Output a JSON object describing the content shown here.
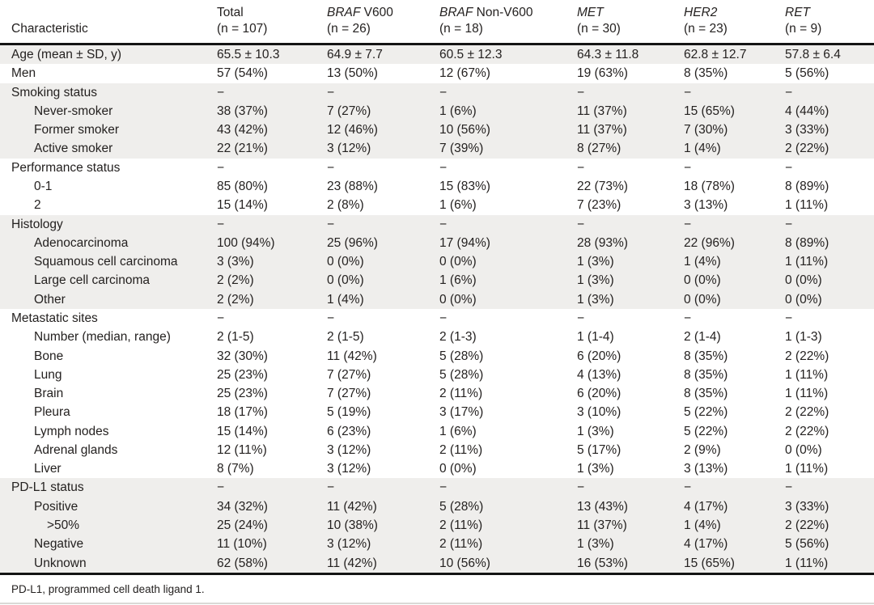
{
  "table": {
    "header_label": "Characteristic",
    "columns": [
      {
        "gene": "",
        "rest": "Total",
        "n": "(n = 107)"
      },
      {
        "gene": "BRAF",
        "rest": " V600",
        "n": "(n = 26)"
      },
      {
        "gene": "BRAF",
        "rest": " Non-V600",
        "n": "(n = 18)"
      },
      {
        "gene": "MET",
        "rest": "",
        "n": "(n = 30)"
      },
      {
        "gene": "HER2",
        "rest": "",
        "n": "(n = 23)"
      },
      {
        "gene": "RET",
        "rest": "",
        "n": "(n = 9)"
      }
    ],
    "rows": [
      {
        "label": "Age (mean ± SD, y)",
        "indent": 0,
        "shade": true,
        "values": [
          "65.5 ± 10.3",
          "64.9 ± 7.7",
          "60.5 ± 12.3",
          "64.3 ± 11.8",
          "62.8 ± 12.7",
          "57.8 ± 6.4"
        ]
      },
      {
        "label": "Men",
        "indent": 0,
        "shade": false,
        "values": [
          "57 (54%)",
          "13 (50%)",
          "12 (67%)",
          "19 (63%)",
          "8 (35%)",
          "5 (56%)"
        ]
      },
      {
        "label": "Smoking status",
        "indent": 0,
        "shade": true,
        "values": [
          "−",
          "−",
          "−",
          "−",
          "−",
          "−"
        ]
      },
      {
        "label": "Never-smoker",
        "indent": 1,
        "shade": true,
        "values": [
          "38 (37%)",
          "7 (27%)",
          "1 (6%)",
          "11 (37%)",
          "15 (65%)",
          "4 (44%)"
        ]
      },
      {
        "label": "Former smoker",
        "indent": 1,
        "shade": true,
        "values": [
          "43 (42%)",
          "12 (46%)",
          "10 (56%)",
          "11 (37%)",
          "7 (30%)",
          "3 (33%)"
        ]
      },
      {
        "label": "Active smoker",
        "indent": 1,
        "shade": true,
        "values": [
          "22 (21%)",
          "3 (12%)",
          "7 (39%)",
          "8 (27%)",
          "1 (4%)",
          "2 (22%)"
        ]
      },
      {
        "label": "Performance status",
        "indent": 0,
        "shade": false,
        "values": [
          "−",
          "−",
          "−",
          "−",
          "−",
          "−"
        ]
      },
      {
        "label": "0-1",
        "indent": 1,
        "shade": false,
        "values": [
          "85 (80%)",
          "23 (88%)",
          "15 (83%)",
          "22 (73%)",
          "18 (78%)",
          "8 (89%)"
        ]
      },
      {
        "label": "2",
        "indent": 1,
        "shade": false,
        "values": [
          "15 (14%)",
          "2 (8%)",
          "1 (6%)",
          "7 (23%)",
          "3 (13%)",
          "1 (11%)"
        ]
      },
      {
        "label": "Histology",
        "indent": 0,
        "shade": true,
        "values": [
          "−",
          "−",
          "−",
          "−",
          "−",
          "−"
        ]
      },
      {
        "label": "Adenocarcinoma",
        "indent": 1,
        "shade": true,
        "values": [
          "100 (94%)",
          "25 (96%)",
          "17 (94%)",
          "28 (93%)",
          "22 (96%)",
          "8 (89%)"
        ]
      },
      {
        "label": "Squamous cell carcinoma",
        "indent": 1,
        "shade": true,
        "values": [
          "3 (3%)",
          "0 (0%)",
          "0 (0%)",
          "1 (3%)",
          "1 (4%)",
          "1 (11%)"
        ]
      },
      {
        "label": "Large cell carcinoma",
        "indent": 1,
        "shade": true,
        "values": [
          "2 (2%)",
          "0 (0%)",
          "1 (6%)",
          "1 (3%)",
          "0 (0%)",
          "0 (0%)"
        ]
      },
      {
        "label": "Other",
        "indent": 1,
        "shade": true,
        "values": [
          "2 (2%)",
          "1 (4%)",
          "0 (0%)",
          "1 (3%)",
          "0 (0%)",
          "0 (0%)"
        ]
      },
      {
        "label": "Metastatic sites",
        "indent": 0,
        "shade": false,
        "values": [
          "−",
          "−",
          "−",
          "−",
          "−",
          "−"
        ]
      },
      {
        "label": "Number (median, range)",
        "indent": 1,
        "shade": false,
        "values": [
          "2 (1-5)",
          "2 (1-5)",
          "2 (1-3)",
          "1 (1-4)",
          "2 (1-4)",
          "1 (1-3)"
        ]
      },
      {
        "label": "Bone",
        "indent": 1,
        "shade": false,
        "values": [
          "32 (30%)",
          "11 (42%)",
          "5 (28%)",
          "6 (20%)",
          "8 (35%)",
          "2 (22%)"
        ]
      },
      {
        "label": "Lung",
        "indent": 1,
        "shade": false,
        "values": [
          "25 (23%)",
          "7 (27%)",
          "5 (28%)",
          "4 (13%)",
          "8 (35%)",
          "1 (11%)"
        ]
      },
      {
        "label": "Brain",
        "indent": 1,
        "shade": false,
        "values": [
          "25 (23%)",
          "7 (27%)",
          "2 (11%)",
          "6 (20%)",
          "8 (35%)",
          "1 (11%)"
        ]
      },
      {
        "label": "Pleura",
        "indent": 1,
        "shade": false,
        "values": [
          "18 (17%)",
          "5 (19%)",
          "3 (17%)",
          "3 (10%)",
          "5 (22%)",
          "2 (22%)"
        ]
      },
      {
        "label": "Lymph nodes",
        "indent": 1,
        "shade": false,
        "values": [
          "15 (14%)",
          "6 (23%)",
          "1 (6%)",
          "1 (3%)",
          "5 (22%)",
          "2 (22%)"
        ]
      },
      {
        "label": "Adrenal glands",
        "indent": 1,
        "shade": false,
        "values": [
          "12 (11%)",
          "3 (12%)",
          "2 (11%)",
          "5 (17%)",
          "2 (9%)",
          "0 (0%)"
        ]
      },
      {
        "label": "Liver",
        "indent": 1,
        "shade": false,
        "values": [
          "8 (7%)",
          "3 (12%)",
          "0 (0%)",
          "1 (3%)",
          "3 (13%)",
          "1 (11%)"
        ]
      },
      {
        "label": "PD-L1 status",
        "indent": 0,
        "shade": true,
        "values": [
          "−",
          "−",
          "−",
          "−",
          "−",
          "−"
        ]
      },
      {
        "label": "Positive",
        "indent": 1,
        "shade": true,
        "values": [
          "34 (32%)",
          "11 (42%)",
          "5 (28%)",
          "13 (43%)",
          "4 (17%)",
          "3 (33%)"
        ]
      },
      {
        "label": ">50%",
        "indent": 2,
        "shade": true,
        "values": [
          "25 (24%)",
          "10 (38%)",
          "2 (11%)",
          "11 (37%)",
          "1 (4%)",
          "2 (22%)"
        ]
      },
      {
        "label": "Negative",
        "indent": 1,
        "shade": true,
        "values": [
          "11 (10%)",
          "3 (12%)",
          "2 (11%)",
          "1 (3%)",
          "4 (17%)",
          "5 (56%)"
        ]
      },
      {
        "label": "Unknown",
        "indent": 1,
        "shade": true,
        "values": [
          "62 (58%)",
          "11 (42%)",
          "10 (56%)",
          "16 (53%)",
          "15 (65%)",
          "1 (11%)"
        ]
      }
    ],
    "footnote": "PD-L1, programmed cell death ligand 1."
  }
}
